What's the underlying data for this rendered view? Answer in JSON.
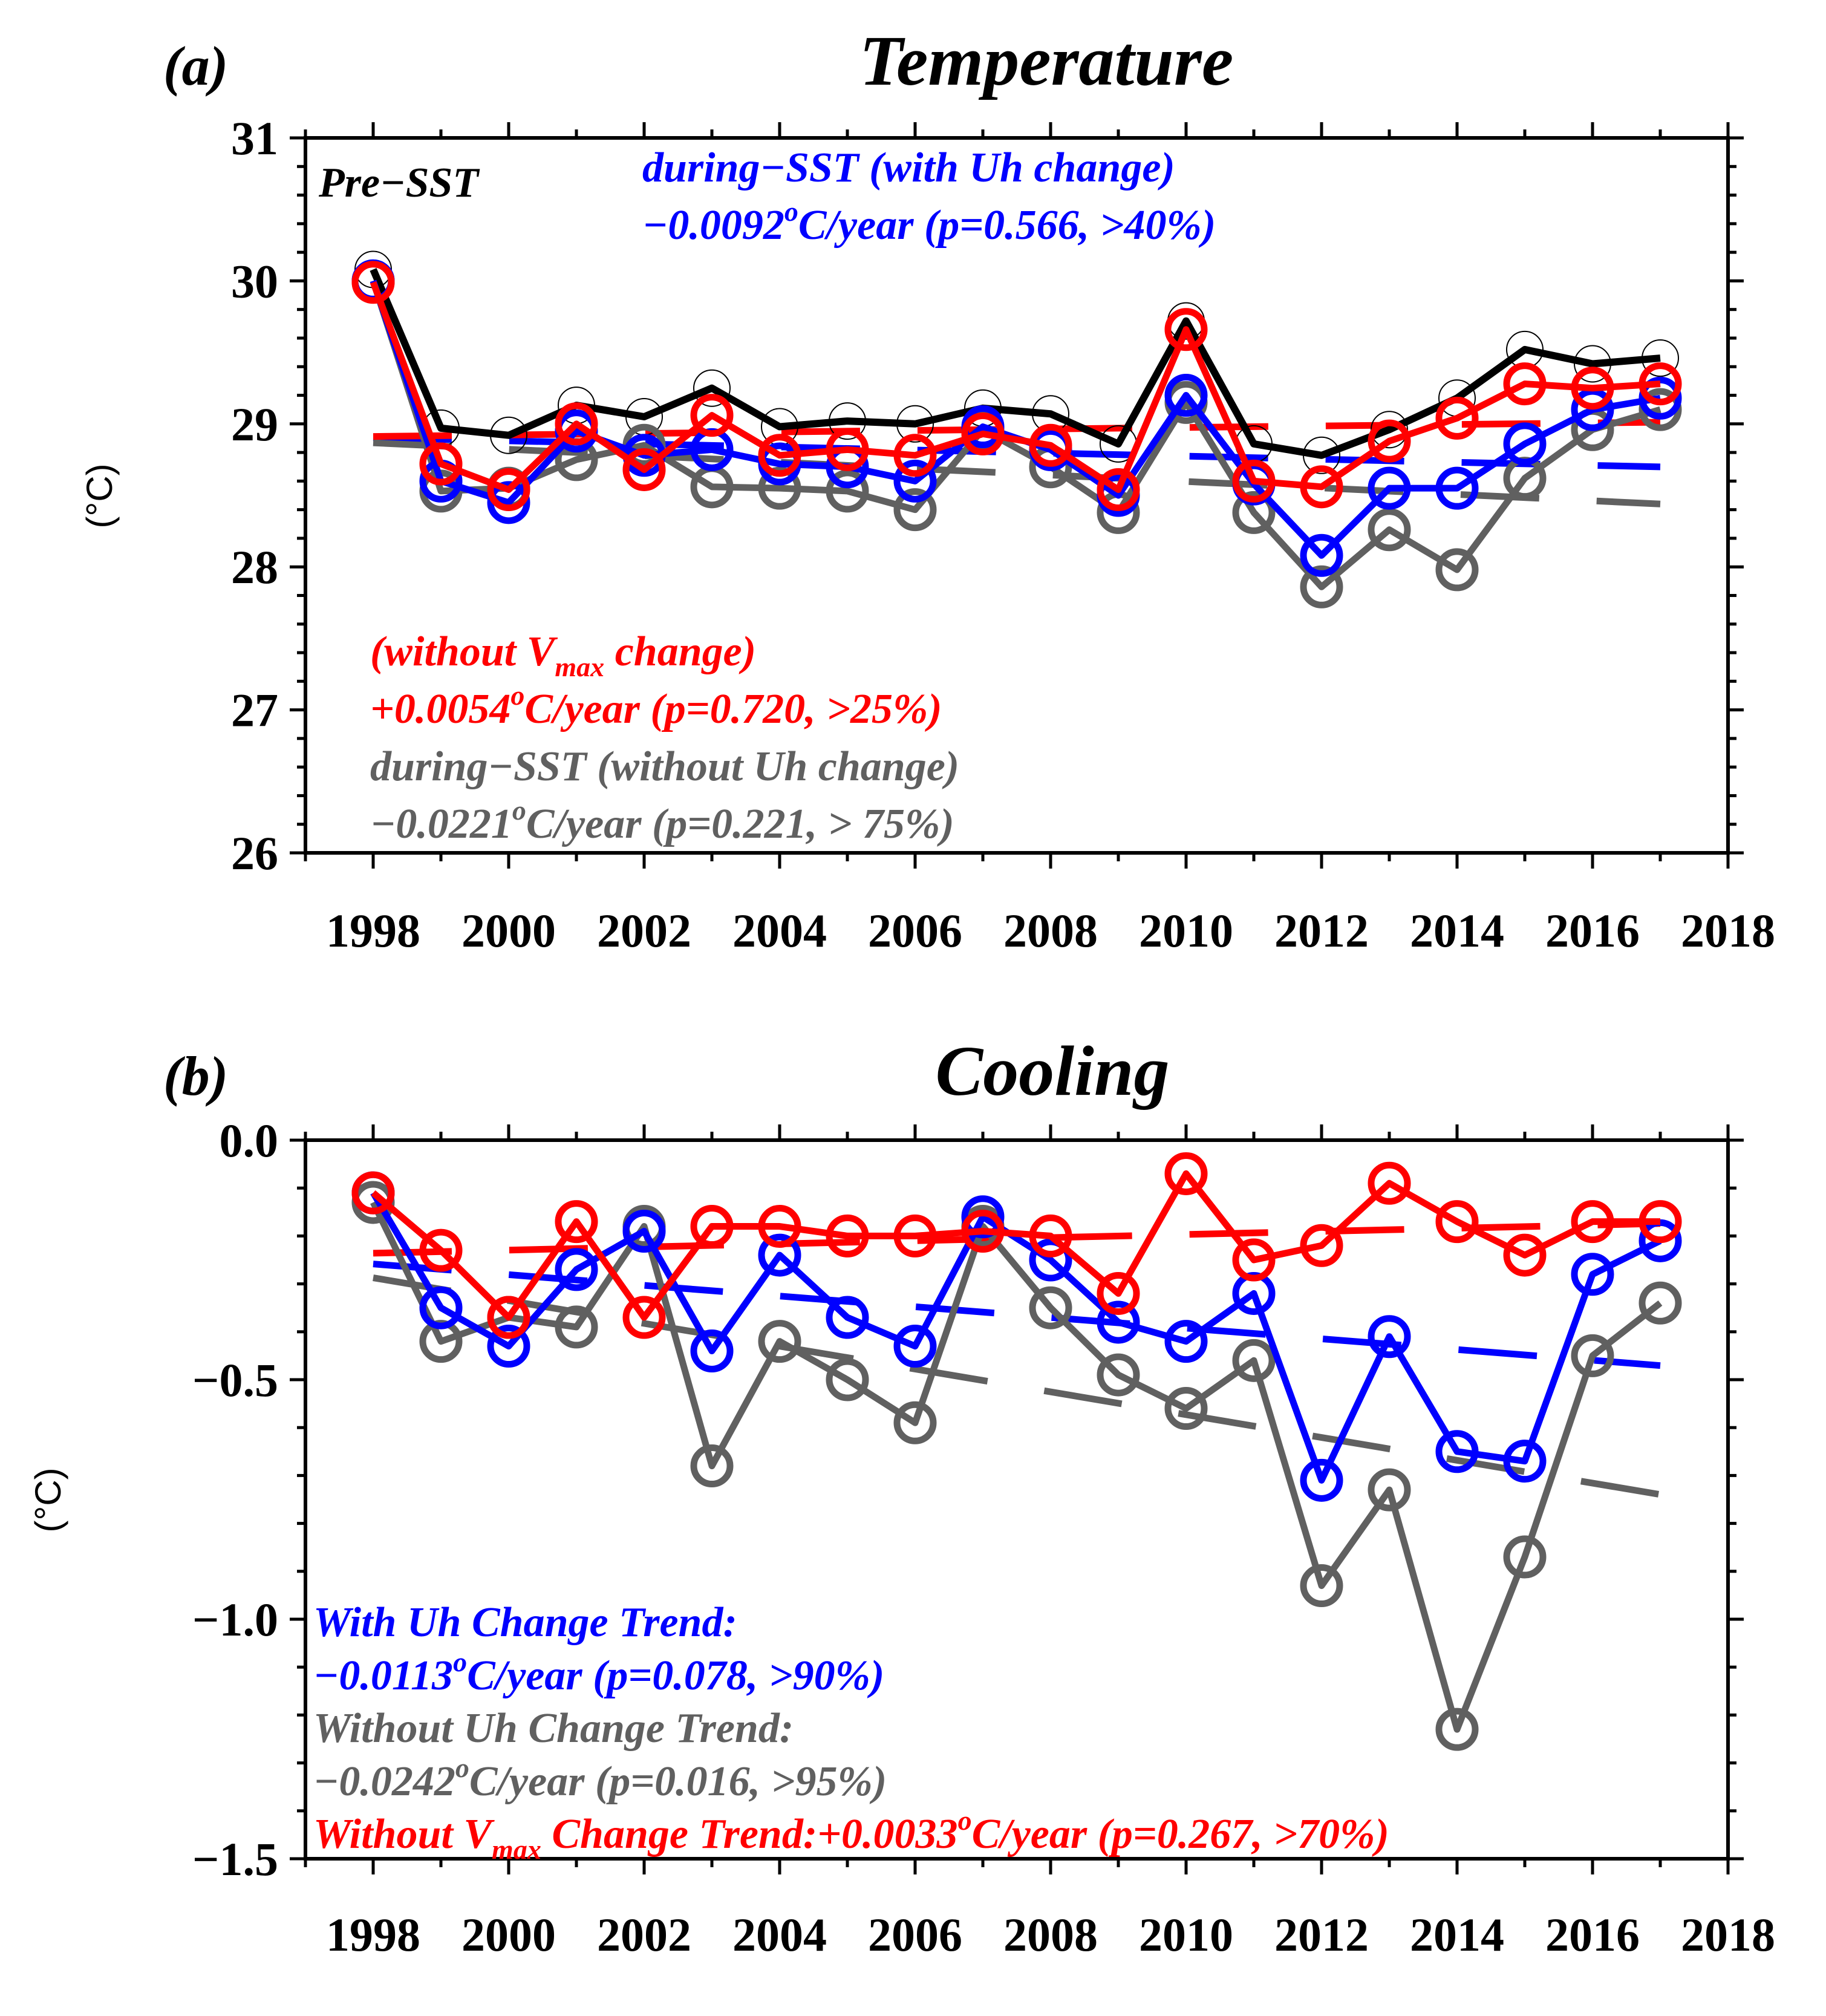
{
  "chart_data": [
    {
      "type": "line",
      "panel_label": "(a)",
      "title": "Temperature",
      "ylabel": "(°C)",
      "ylim": [
        26,
        31
      ],
      "xlim": [
        1997,
        2018
      ],
      "yticks": [
        "26",
        "27",
        "28",
        "29",
        "30",
        "31"
      ],
      "xticks": [
        "1998",
        "2000",
        "2002",
        "2004",
        "2006",
        "2008",
        "2010",
        "2012",
        "2014",
        "2016",
        "2018"
      ],
      "x": [
        1998,
        1999,
        2000,
        2001,
        2002,
        2003,
        2004,
        2005,
        2006,
        2007,
        2008,
        2009,
        2010,
        2011,
        2012,
        2013,
        2014,
        2015,
        2016,
        2017
      ],
      "series": [
        {
          "name": "Pre-SST",
          "color": "#000000",
          "values": [
            30.08,
            28.97,
            28.92,
            29.13,
            29.05,
            29.25,
            28.98,
            29.02,
            29.0,
            29.11,
            29.07,
            28.86,
            29.72,
            28.86,
            28.78,
            28.96,
            29.18,
            29.52,
            29.42,
            29.46
          ]
        },
        {
          "name": "during-SST (with Uh change)",
          "color": "#0000ff",
          "values": [
            30.0,
            28.6,
            28.45,
            28.95,
            28.78,
            28.82,
            28.72,
            28.7,
            28.6,
            28.98,
            28.82,
            28.5,
            29.2,
            28.58,
            28.08,
            28.55,
            28.55,
            28.86,
            29.1,
            29.18
          ]
        },
        {
          "name": "during-SST (without Uh change)",
          "color": "#606060",
          "values": [
            30.0,
            28.53,
            28.55,
            28.75,
            28.85,
            28.56,
            28.55,
            28.53,
            28.4,
            28.96,
            28.7,
            28.38,
            29.15,
            28.38,
            27.86,
            28.26,
            27.98,
            28.62,
            28.96,
            29.1
          ]
        },
        {
          "name": "without Vmax change",
          "color": "#ff0000",
          "values": [
            29.99,
            28.72,
            28.54,
            29.0,
            28.68,
            29.06,
            28.78,
            28.82,
            28.78,
            28.93,
            28.85,
            28.54,
            29.66,
            28.6,
            28.56,
            28.88,
            29.04,
            29.28,
            29.25,
            29.28
          ]
        }
      ],
      "annotations": {
        "pre_label": "Pre−SST",
        "blue_line1": "during−SST (with Uh change)",
        "blue_line2_pre": "−0.0092",
        "blue_line2_post": "C/year (p=0.566, >40%)",
        "red_line1_pre": "(without V",
        "red_line1_sub": "max",
        "red_line1_post": " change)",
        "red_line2_pre": "+0.0054",
        "red_line2_post": "C/year (p=0.720, >25%)",
        "gray_line1": "during−SST (without Uh change)",
        "gray_line2_pre": "−0.0221",
        "gray_line2_post": "C/year (p=0.221, > 75%)",
        "deg": "o"
      }
    },
    {
      "type": "line",
      "panel_label": "(b)",
      "title": "Cooling",
      "ylabel": "(°C)",
      "ylim": [
        -1.5,
        0.0
      ],
      "xlim": [
        1997,
        2018
      ],
      "yticks": [
        "0.0",
        "−0.5",
        "−1.0",
        "−1.5"
      ],
      "xticks": [
        "1998",
        "2000",
        "2002",
        "2004",
        "2006",
        "2008",
        "2010",
        "2012",
        "2014",
        "2016",
        "2018"
      ],
      "x": [
        1998,
        1999,
        2000,
        2001,
        2002,
        2003,
        2004,
        2005,
        2006,
        2007,
        2008,
        2009,
        2010,
        2011,
        2012,
        2013,
        2014,
        2015,
        2016,
        2017
      ],
      "series": [
        {
          "name": "With Uh Change Trend",
          "color": "#0000ff",
          "values": [
            -0.11,
            -0.35,
            -0.43,
            -0.27,
            -0.19,
            -0.44,
            -0.24,
            -0.37,
            -0.43,
            -0.16,
            -0.25,
            -0.38,
            -0.42,
            -0.32,
            -0.71,
            -0.41,
            -0.65,
            -0.67,
            -0.28,
            -0.21
          ]
        },
        {
          "name": "Without Uh Change Trend",
          "color": "#606060",
          "values": [
            -0.13,
            -0.42,
            -0.37,
            -0.39,
            -0.18,
            -0.68,
            -0.42,
            -0.5,
            -0.59,
            -0.18,
            -0.35,
            -0.49,
            -0.56,
            -0.46,
            -0.93,
            -0.73,
            -1.23,
            -0.87,
            -0.45,
            -0.34
          ]
        },
        {
          "name": "Without Vmax Change Trend",
          "color": "#ff0000",
          "values": [
            -0.11,
            -0.23,
            -0.37,
            -0.17,
            -0.37,
            -0.18,
            -0.18,
            -0.2,
            -0.2,
            -0.19,
            -0.2,
            -0.32,
            -0.07,
            -0.25,
            -0.22,
            -0.09,
            -0.17,
            -0.24,
            -0.17,
            -0.17
          ]
        }
      ],
      "annotations": {
        "blue_line1": "With Uh Change Trend:",
        "blue_line2_pre": "−0.0113",
        "blue_line2_post": "C/year (p=0.078, >90%)",
        "gray_line1": "Without Uh Change Trend:",
        "gray_line2_pre": "−0.0242",
        "gray_line2_post": "C/year (p=0.016, >95%)",
        "red_line_pre": "Without V",
        "red_line_sub": "max",
        "red_line_mid": " Change Trend:+0.0033",
        "red_line_post": "C/year (p=0.267, >70%)",
        "deg": "o"
      }
    }
  ]
}
